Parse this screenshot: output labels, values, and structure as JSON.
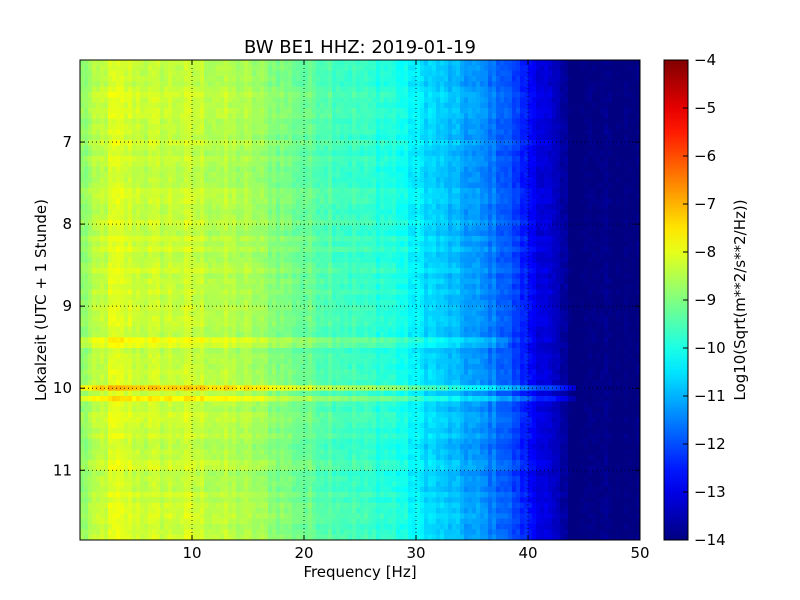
{
  "chart_data": {
    "type": "heatmap",
    "title": "BW BE1 HHZ: 2019-01-19",
    "xlabel": "Frequency [Hz]",
    "ylabel": "Lokalzeit (UTC + 1 Stunde)",
    "colorbar_label": "Log10(Sqrt(m**2/s**2/Hz))",
    "xlim": [
      0,
      50
    ],
    "ylim": [
      11.85,
      6.0
    ],
    "y_inverted": true,
    "x_ticks": [
      10,
      20,
      30,
      40,
      50
    ],
    "y_ticks": [
      7,
      8,
      9,
      10,
      11
    ],
    "grid": true,
    "colormap": "jet",
    "color_range": [
      -14,
      -4
    ],
    "colorbar_ticks": [
      -4,
      -5,
      -6,
      -7,
      -8,
      -9,
      -10,
      -11,
      -12,
      -13,
      -14
    ],
    "spectrum_profile": {
      "frequency_hz": [
        0,
        3,
        6,
        10,
        15,
        20,
        25,
        28,
        30,
        33,
        36,
        38,
        40,
        42,
        43,
        44,
        50
      ],
      "log_value": [
        -8.9,
        -8.1,
        -8.3,
        -8.3,
        -8.6,
        -9.2,
        -9.7,
        -9.9,
        -10.4,
        -10.9,
        -11.4,
        -11.8,
        -12.6,
        -13.3,
        -13.7,
        -14.0,
        -14.0
      ]
    },
    "notable_time_lines": [
      {
        "hour": 10.0,
        "offset": 1.1,
        "max_freq_hz": 44
      },
      {
        "hour": 10.15,
        "offset": 0.7,
        "max_freq_hz": 44
      },
      {
        "hour": 9.45,
        "offset": 0.4,
        "max_freq_hz": 38
      }
    ]
  }
}
